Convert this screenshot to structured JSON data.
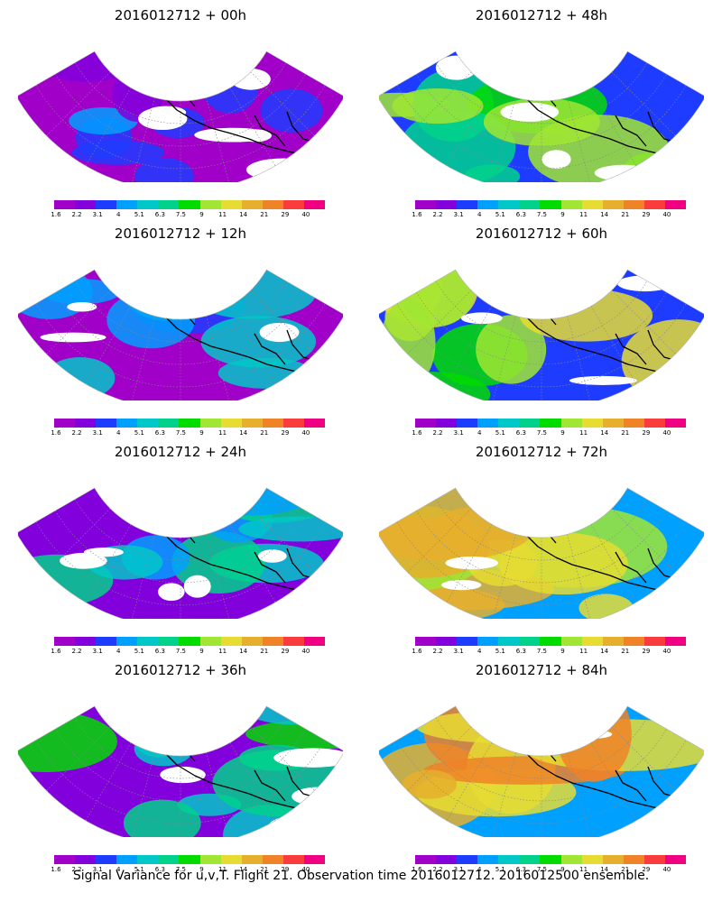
{
  "figure": {
    "caption": "Signal Variance for u,v,T. Flight 21. Observation time 2016012712. 2016012500 ensemble."
  },
  "colorbar": {
    "colors": [
      "#a000c8",
      "#8200dc",
      "#1e3cff",
      "#00a0ff",
      "#00c8c8",
      "#00d28c",
      "#00dc00",
      "#a0e632",
      "#e6dc32",
      "#e6af2d",
      "#f08228",
      "#fa3c3c",
      "#f00082"
    ],
    "labels": [
      "1.6",
      "2.2",
      "3.1",
      "4",
      "5.1",
      "6.3",
      "7.5",
      "9",
      "11",
      "14",
      "21",
      "29",
      "40"
    ]
  },
  "panels": [
    {
      "title": "2016012712 + 00h",
      "lead_hours": 0
    },
    {
      "title": "2016012712 + 48h",
      "lead_hours": 48
    },
    {
      "title": "2016012712 + 12h",
      "lead_hours": 12
    },
    {
      "title": "2016012712 + 60h",
      "lead_hours": 60
    },
    {
      "title": "2016012712 + 24h",
      "lead_hours": 24
    },
    {
      "title": "2016012712 + 72h",
      "lead_hours": 72
    },
    {
      "title": "2016012712 + 36h",
      "lead_hours": 36
    },
    {
      "title": "2016012712 + 84h",
      "lead_hours": 84
    }
  ]
}
